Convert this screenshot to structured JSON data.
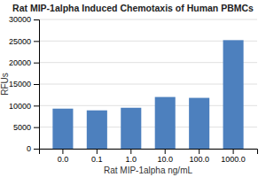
{
  "chart_data": {
    "type": "bar",
    "title": "Rat MIP-1alpha Induced Chemotaxis of Human PBMCs",
    "xlabel": "Rat MIP-1alpha ng/mL",
    "ylabel": "RFUs",
    "categories": [
      "0.0",
      "0.1",
      "1.0",
      "10.0",
      "100.0",
      "1000.0"
    ],
    "values": [
      9300,
      8900,
      9500,
      12000,
      11800,
      25200
    ],
    "color": "#4d80be",
    "ylim": [
      0,
      30000
    ],
    "yticks": [
      0,
      5000,
      10000,
      15000,
      20000,
      25000,
      30000
    ],
    "grid": true
  }
}
